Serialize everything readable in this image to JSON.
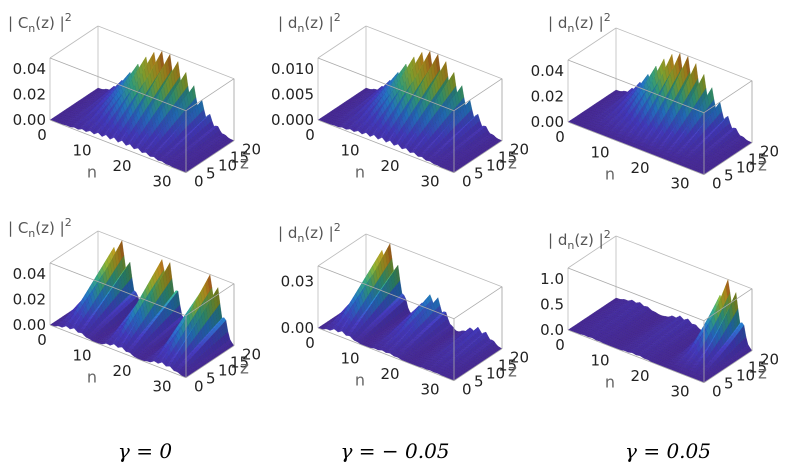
{
  "chart_data": [
    {
      "type": "surface",
      "zlabel": "| C",
      "zsub": "n",
      "zsuffix": "(z) |",
      "zpow": "2",
      "xlabel": "n",
      "ylabel": "z",
      "xticks": [
        "0",
        "10",
        "20",
        "30"
      ],
      "yticks": [
        "0",
        "5",
        "10",
        "15",
        "20"
      ],
      "zticks": [
        "0.00",
        "0.02",
        "0.04"
      ],
      "xlim": [
        0,
        35
      ],
      "ylim": [
        0,
        20
      ],
      "zlim": [
        0,
        0.05
      ],
      "pattern": "single"
    },
    {
      "type": "surface",
      "zlabel": "| d",
      "zsub": "n",
      "zsuffix": "(z) |",
      "zpow": "2",
      "xlabel": "n",
      "ylabel": "z",
      "xticks": [
        "0",
        "10",
        "20",
        "30"
      ],
      "yticks": [
        "0",
        "5",
        "10",
        "15",
        "20"
      ],
      "zticks": [
        "0.000",
        "0.005",
        "0.010"
      ],
      "xlim": [
        0,
        35
      ],
      "ylim": [
        0,
        20
      ],
      "zlim": [
        0,
        0.012
      ],
      "pattern": "single"
    },
    {
      "type": "surface",
      "zlabel": "| d",
      "zsub": "n",
      "zsuffix": "(z) |",
      "zpow": "2",
      "xlabel": "n",
      "ylabel": "z",
      "xticks": [
        "0",
        "10",
        "20",
        "30"
      ],
      "yticks": [
        "0",
        "5",
        "10",
        "15",
        "20"
      ],
      "zticks": [
        "0.00",
        "0.02",
        "0.04"
      ],
      "xlim": [
        0,
        35
      ],
      "ylim": [
        0,
        20
      ],
      "zlim": [
        0,
        0.05
      ],
      "pattern": "shifted"
    },
    {
      "type": "surface",
      "zlabel": "| C",
      "zsub": "n",
      "zsuffix": "(z) |",
      "zpow": "2",
      "xlabel": "n",
      "ylabel": "z",
      "xticks": [
        "0",
        "10",
        "20",
        "30"
      ],
      "yticks": [
        "0",
        "5",
        "10",
        "15",
        "20"
      ],
      "zticks": [
        "0.00",
        "0.02",
        "0.04"
      ],
      "xlim": [
        0,
        35
      ],
      "ylim": [
        0,
        20
      ],
      "zlim": [
        0,
        0.05
      ],
      "pattern": "triple"
    },
    {
      "type": "surface",
      "zlabel": "| d",
      "zsub": "n",
      "zsuffix": "(z) |",
      "zpow": "2",
      "xlabel": "n",
      "ylabel": "z",
      "xticks": [
        "0",
        "10",
        "20",
        "30"
      ],
      "yticks": [
        "0",
        "5",
        "10",
        "15",
        "20"
      ],
      "zticks": [
        "0.00",
        "0.03"
      ],
      "xlim": [
        0,
        35
      ],
      "ylim": [
        0,
        20
      ],
      "zlim": [
        0,
        0.04
      ],
      "pattern": "decaying"
    },
    {
      "type": "surface",
      "zlabel": "| d",
      "zsub": "n",
      "zsuffix": "(z) |",
      "zpow": "2",
      "xlabel": "n",
      "ylabel": "z",
      "xticks": [
        "0",
        "10",
        "20",
        "30"
      ],
      "yticks": [
        "0",
        "5",
        "10",
        "15",
        "20"
      ],
      "zticks": [
        "0.0",
        "0.5",
        "1.0"
      ],
      "xlim": [
        0,
        35
      ],
      "ylim": [
        0,
        20
      ],
      "zlim": [
        0,
        1.2
      ],
      "pattern": "growing"
    }
  ],
  "captions": [
    "γ = 0",
    "γ = − 0.05",
    "γ = 0.05"
  ]
}
